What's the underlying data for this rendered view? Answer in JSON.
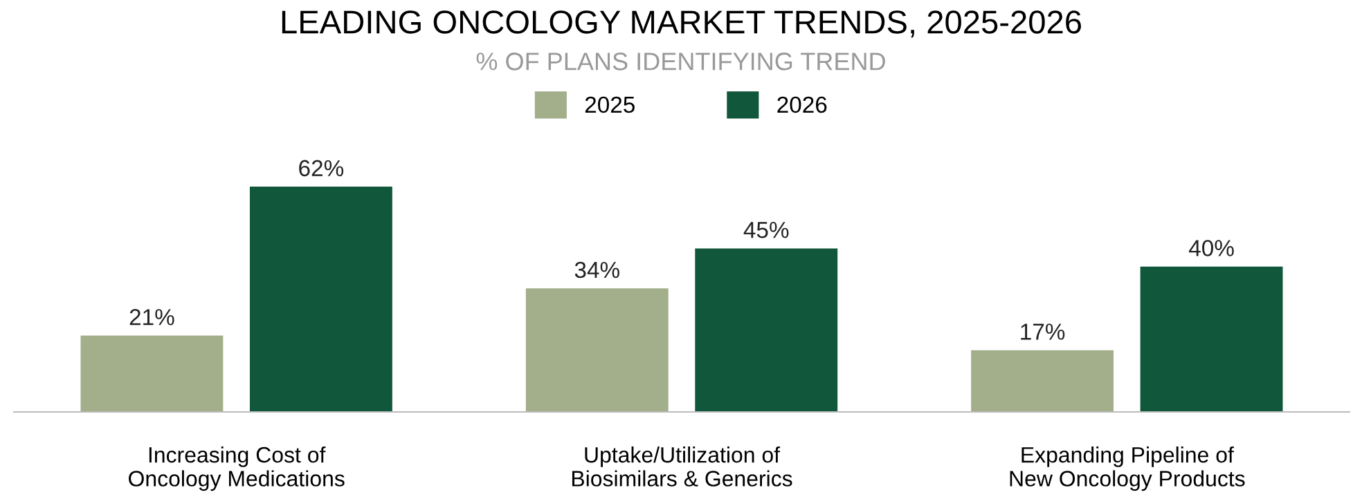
{
  "chart_data": {
    "type": "bar",
    "title": "LEADING ONCOLOGY MARKET TRENDS, 2025-2026",
    "subtitle": "% OF PLANS IDENTIFYING TREND",
    "categories": [
      "Increasing Cost of\nOncology Medications",
      "Uptake/Utilization of\nBiosimilars & Generics",
      "Expanding Pipeline of\nNew Oncology Products"
    ],
    "series": [
      {
        "name": "2025",
        "color": "#a3ae8b",
        "values": [
          21,
          34,
          17
        ],
        "value_labels": [
          "21%",
          "34%",
          "17%"
        ]
      },
      {
        "name": "2026",
        "color": "#11573b",
        "values": [
          62,
          45,
          40
        ],
        "value_labels": [
          "62%",
          "45%",
          "40%"
        ]
      }
    ],
    "legend": "top",
    "grid": false
  }
}
